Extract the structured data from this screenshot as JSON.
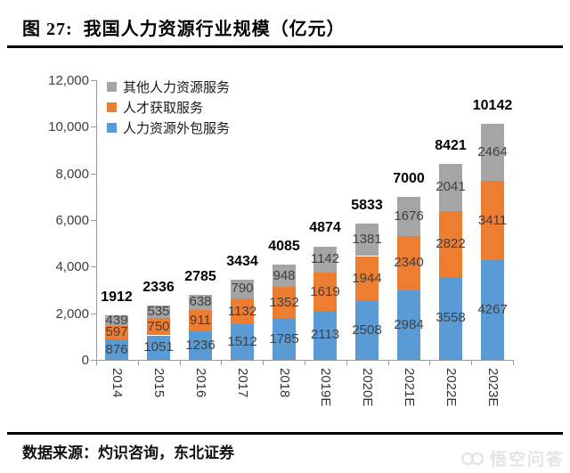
{
  "title": "图 27:  我国人力资源行业规模（亿元）",
  "source": "数据来源：灼识咨询，东北证券",
  "watermark": "悟空问答",
  "chart_data": {
    "type": "bar",
    "stacked": true,
    "title": "图 27: 我国人力资源行业规模（亿元）",
    "xlabel": "",
    "ylabel": "",
    "unit": "亿元",
    "categories": [
      "2014",
      "2015",
      "2016",
      "2017",
      "2018",
      "2019E",
      "2020E",
      "2021E",
      "2022E",
      "2023E"
    ],
    "series": [
      {
        "name": "人力资源外包服务",
        "color": "#5B9BD5",
        "values": [
          876,
          1051,
          1236,
          1512,
          1785,
          2113,
          2508,
          2984,
          3558,
          4267
        ]
      },
      {
        "name": "人才获取服务",
        "color": "#ED7D31",
        "values": [
          597,
          750,
          911,
          1132,
          1352,
          1619,
          1944,
          2340,
          2822,
          3411
        ]
      },
      {
        "name": "其他人力资源服务",
        "color": "#A5A5A5",
        "values": [
          439,
          535,
          638,
          790,
          948,
          1142,
          1381,
          1676,
          2041,
          2464
        ]
      }
    ],
    "totals": [
      1912,
      2336,
      2785,
      3434,
      4085,
      4874,
      5833,
      7000,
      8421,
      10142
    ],
    "legend": [
      {
        "label": "其他人力资源服务",
        "color": "#A5A5A5"
      },
      {
        "label": "人才获取服务",
        "color": "#ED7D31"
      },
      {
        "label": "人力资源外包服务",
        "color": "#5B9BD5"
      }
    ],
    "legend_position": "top-left-inside",
    "y_ticks": [
      "0",
      "2,000",
      "4,000",
      "6,000",
      "8,000",
      "10,000",
      "12,000"
    ],
    "ylim": [
      0,
      12000
    ],
    "grid": false,
    "axis_color": "#9b9b9b"
  }
}
